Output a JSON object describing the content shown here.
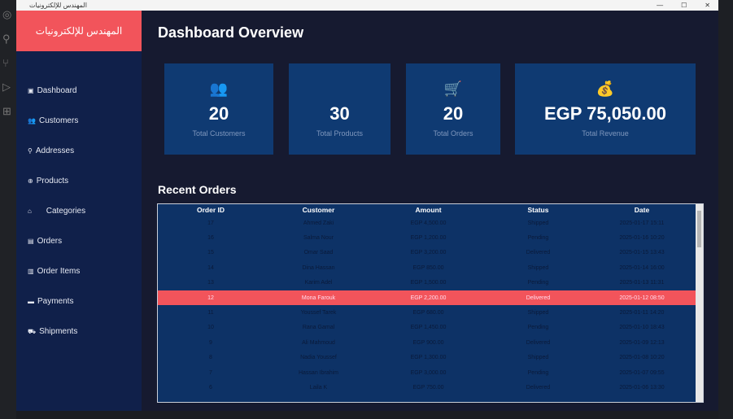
{
  "window": {
    "title": "المهندس للإلكترونيات"
  },
  "sidebar": {
    "brand": "المهندس للإلكترونيات",
    "items": [
      {
        "icon": "dashboard-icon",
        "glyph": "▣",
        "label": "Dashboard"
      },
      {
        "icon": "customers-icon",
        "glyph": "👥",
        "label": "Customers"
      },
      {
        "icon": "location-icon",
        "glyph": "⚲",
        "label": "Addresses"
      },
      {
        "icon": "products-icon",
        "glyph": "⊕",
        "label": "Products"
      },
      {
        "icon": "tag-icon",
        "glyph": "⌂",
        "label": "     Categories"
      },
      {
        "icon": "orders-icon",
        "glyph": "▤",
        "label": "Orders"
      },
      {
        "icon": "order-items-icon",
        "glyph": "▥",
        "label": "Order Items"
      },
      {
        "icon": "payments-icon",
        "glyph": "▬",
        "label": "Payments"
      },
      {
        "icon": "shipments-icon",
        "glyph": "⛟",
        "label": "Shipments"
      }
    ]
  },
  "main": {
    "title": "Dashboard Overview",
    "cards": [
      {
        "icon": "users-icon",
        "glyph": "👥",
        "value": "20",
        "label": "Total Customers"
      },
      {
        "icon": "box-icon",
        "glyph": "",
        "value": "30",
        "label": "Total Products"
      },
      {
        "icon": "cart-icon",
        "glyph": "🛒",
        "value": "20",
        "label": "Total Orders"
      },
      {
        "icon": "money-bag-icon",
        "glyph": "💰",
        "value": "EGP 75,050.00",
        "label": "Total Revenue"
      }
    ],
    "recent_title": "Recent Orders",
    "columns": [
      "Order ID",
      "Customer",
      "Amount",
      "Status",
      "Date"
    ],
    "rows": [
      [
        "17",
        "Ahmed Zaki",
        "EGP 4,500.00",
        "Shipped",
        "2025-01-17 15:11"
      ],
      [
        "16",
        "Salma Nour",
        "EGP 1,200.00",
        "Pending",
        "2025-01-16 10:20"
      ],
      [
        "15",
        "Omar Saad",
        "EGP 3,200.00",
        "Delivered",
        "2025-01-15 13:43"
      ],
      [
        "14",
        "Dina Hassan",
        "EGP 850.00",
        "Shipped",
        "2025-01-14 16:00"
      ],
      [
        "13",
        "Karim Adel",
        "EGP 1,500.00",
        "Pending",
        "2025-01-13 11:31"
      ],
      [
        "12",
        "Mona Farouk",
        "EGP 2,200.00",
        "Delivered",
        "2025-01-12 08:50"
      ],
      [
        "11",
        "Youssef Tarek",
        "EGP 680.00",
        "Shipped",
        "2025-01-11 14:20"
      ],
      [
        "10",
        "Rana Gamal",
        "EGP 1,450.00",
        "Pending",
        "2025-01-10 18:43"
      ],
      [
        "9",
        "Ali Mahmoud",
        "EGP 900.00",
        "Delivered",
        "2025-01-09 12:13"
      ],
      [
        "8",
        "Nadia Youssef",
        "EGP 1,300.00",
        "Shipped",
        "2025-01-08 10:20"
      ],
      [
        "7",
        "Hassan Ibrahim",
        "EGP 3,000.00",
        "Pending",
        "2025-01-07 09:55"
      ],
      [
        "6",
        "Laila K",
        "EGP 750.00",
        "Delivered",
        "2025-01-06 13:30"
      ]
    ],
    "selected_row": 5
  },
  "colors": {
    "accent": "#f2545b",
    "sidebar": "#10204a",
    "card": "#0f3a72"
  }
}
